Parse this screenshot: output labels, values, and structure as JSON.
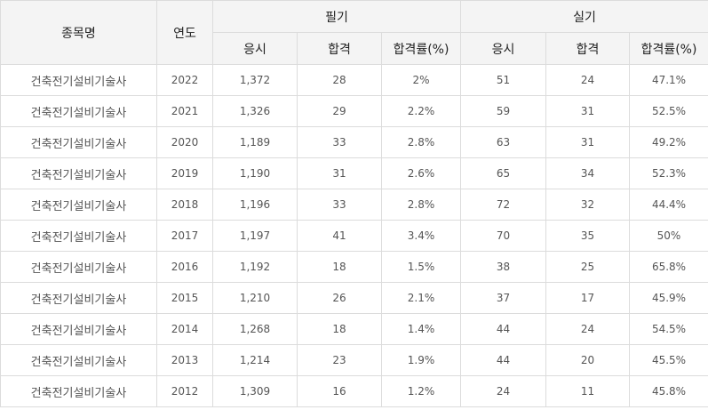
{
  "table": {
    "headers": {
      "name": "종목명",
      "year": "연도",
      "written_group": "필기",
      "practical_group": "실기",
      "sub": [
        "응시",
        "합격",
        "합격률(%)",
        "응시",
        "합격",
        "합격률(%)"
      ]
    },
    "rows": [
      {
        "name": "건축전기설비기술사",
        "year": "2022",
        "w_apply": "1,372",
        "w_pass": "28",
        "w_rate": "2%",
        "p_apply": "51",
        "p_pass": "24",
        "p_rate": "47.1%"
      },
      {
        "name": "건축전기설비기술사",
        "year": "2021",
        "w_apply": "1,326",
        "w_pass": "29",
        "w_rate": "2.2%",
        "p_apply": "59",
        "p_pass": "31",
        "p_rate": "52.5%"
      },
      {
        "name": "건축전기설비기술사",
        "year": "2020",
        "w_apply": "1,189",
        "w_pass": "33",
        "w_rate": "2.8%",
        "p_apply": "63",
        "p_pass": "31",
        "p_rate": "49.2%"
      },
      {
        "name": "건축전기설비기술사",
        "year": "2019",
        "w_apply": "1,190",
        "w_pass": "31",
        "w_rate": "2.6%",
        "p_apply": "65",
        "p_pass": "34",
        "p_rate": "52.3%"
      },
      {
        "name": "건축전기설비기술사",
        "year": "2018",
        "w_apply": "1,196",
        "w_pass": "33",
        "w_rate": "2.8%",
        "p_apply": "72",
        "p_pass": "32",
        "p_rate": "44.4%"
      },
      {
        "name": "건축전기설비기술사",
        "year": "2017",
        "w_apply": "1,197",
        "w_pass": "41",
        "w_rate": "3.4%",
        "p_apply": "70",
        "p_pass": "35",
        "p_rate": "50%"
      },
      {
        "name": "건축전기설비기술사",
        "year": "2016",
        "w_apply": "1,192",
        "w_pass": "18",
        "w_rate": "1.5%",
        "p_apply": "38",
        "p_pass": "25",
        "p_rate": "65.8%"
      },
      {
        "name": "건축전기설비기술사",
        "year": "2015",
        "w_apply": "1,210",
        "w_pass": "26",
        "w_rate": "2.1%",
        "p_apply": "37",
        "p_pass": "17",
        "p_rate": "45.9%"
      },
      {
        "name": "건축전기설비기술사",
        "year": "2014",
        "w_apply": "1,268",
        "w_pass": "18",
        "w_rate": "1.4%",
        "p_apply": "44",
        "p_pass": "24",
        "p_rate": "54.5%"
      },
      {
        "name": "건축전기설비기술사",
        "year": "2013",
        "w_apply": "1,214",
        "w_pass": "23",
        "w_rate": "1.9%",
        "p_apply": "44",
        "p_pass": "20",
        "p_rate": "45.5%"
      },
      {
        "name": "건축전기설비기술사",
        "year": "2012",
        "w_apply": "1,309",
        "w_pass": "16",
        "w_rate": "1.2%",
        "p_apply": "24",
        "p_pass": "11",
        "p_rate": "45.8%"
      }
    ]
  }
}
